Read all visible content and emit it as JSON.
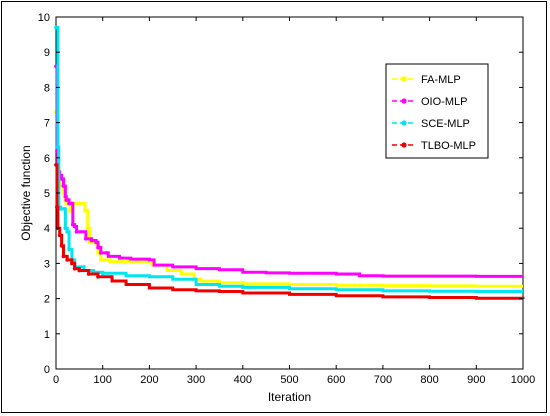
{
  "chart_data": {
    "type": "line",
    "title": "",
    "xlabel": "Iteration",
    "ylabel": "Objective function",
    "xlim": [
      0,
      1000
    ],
    "ylim": [
      0,
      10
    ],
    "xticks": [
      0,
      100,
      200,
      300,
      400,
      500,
      600,
      700,
      800,
      900,
      1000
    ],
    "yticks": [
      0,
      1,
      2,
      3,
      4,
      5,
      6,
      7,
      8,
      9,
      10
    ],
    "grid": false,
    "legend_position": "top-right",
    "series": [
      {
        "name": "FA-MLP",
        "color": "#ffff00",
        "marker": "square",
        "points": [
          [
            0,
            7.3
          ],
          [
            2,
            7.3
          ],
          [
            4,
            5.7
          ],
          [
            6,
            5.4
          ],
          [
            8,
            5.4
          ],
          [
            12,
            5.2
          ],
          [
            16,
            5.0
          ],
          [
            20,
            4.8
          ],
          [
            22,
            4.7
          ],
          [
            28,
            4.7
          ],
          [
            30,
            4.5
          ],
          [
            34,
            4.5
          ],
          [
            36,
            4.7
          ],
          [
            60,
            4.7
          ],
          [
            62,
            4.5
          ],
          [
            66,
            4.5
          ],
          [
            68,
            4.0
          ],
          [
            72,
            3.6
          ],
          [
            86,
            3.55
          ],
          [
            90,
            3.3
          ],
          [
            96,
            3.1
          ],
          [
            112,
            3.1
          ],
          [
            116,
            3.05
          ],
          [
            200,
            3.05
          ],
          [
            206,
            2.95
          ],
          [
            230,
            2.95
          ],
          [
            238,
            2.8
          ],
          [
            268,
            2.7
          ],
          [
            296,
            2.55
          ],
          [
            310,
            2.5
          ],
          [
            350,
            2.45
          ],
          [
            400,
            2.42
          ],
          [
            500,
            2.4
          ],
          [
            600,
            2.38
          ],
          [
            700,
            2.37
          ],
          [
            800,
            2.36
          ],
          [
            900,
            2.35
          ],
          [
            1000,
            2.35
          ]
        ]
      },
      {
        "name": "OIO-MLP",
        "color": "#ff00ff",
        "marker": "circle",
        "points": [
          [
            0,
            8.6
          ],
          [
            2,
            6.2
          ],
          [
            4,
            5.6
          ],
          [
            8,
            5.5
          ],
          [
            12,
            5.4
          ],
          [
            16,
            5.2
          ],
          [
            20,
            4.9
          ],
          [
            22,
            4.8
          ],
          [
            26,
            4.8
          ],
          [
            28,
            4.7
          ],
          [
            34,
            4.7
          ],
          [
            36,
            4.1
          ],
          [
            40,
            4.05
          ],
          [
            44,
            3.9
          ],
          [
            64,
            3.7
          ],
          [
            76,
            3.65
          ],
          [
            86,
            3.6
          ],
          [
            90,
            3.45
          ],
          [
            96,
            3.3
          ],
          [
            108,
            3.3
          ],
          [
            112,
            3.2
          ],
          [
            136,
            3.15
          ],
          [
            160,
            3.12
          ],
          [
            200,
            3.1
          ],
          [
            210,
            2.95
          ],
          [
            250,
            2.9
          ],
          [
            300,
            2.85
          ],
          [
            350,
            2.82
          ],
          [
            400,
            2.75
          ],
          [
            450,
            2.73
          ],
          [
            500,
            2.72
          ],
          [
            600,
            2.7
          ],
          [
            650,
            2.65
          ],
          [
            700,
            2.64
          ],
          [
            800,
            2.64
          ],
          [
            900,
            2.63
          ],
          [
            1000,
            2.63
          ]
        ]
      },
      {
        "name": "SCE-MLP",
        "color": "#00e5ee",
        "marker": "circle",
        "points": [
          [
            0,
            9.7
          ],
          [
            2,
            9.7
          ],
          [
            4,
            6.3
          ],
          [
            6,
            4.6
          ],
          [
            10,
            4.55
          ],
          [
            18,
            4.55
          ],
          [
            20,
            4.0
          ],
          [
            24,
            3.9
          ],
          [
            28,
            3.4
          ],
          [
            34,
            3.1
          ],
          [
            40,
            2.9
          ],
          [
            60,
            2.8
          ],
          [
            80,
            2.75
          ],
          [
            100,
            2.72
          ],
          [
            150,
            2.65
          ],
          [
            200,
            2.62
          ],
          [
            250,
            2.55
          ],
          [
            300,
            2.4
          ],
          [
            350,
            2.35
          ],
          [
            400,
            2.32
          ],
          [
            500,
            2.28
          ],
          [
            600,
            2.25
          ],
          [
            700,
            2.22
          ],
          [
            800,
            2.21
          ],
          [
            900,
            2.2
          ],
          [
            1000,
            2.2
          ]
        ]
      },
      {
        "name": "TLBO-MLP",
        "color": "#ee0000",
        "marker": "circle",
        "points": [
          [
            0,
            5.8
          ],
          [
            2,
            4.6
          ],
          [
            4,
            4.0
          ],
          [
            8,
            3.8
          ],
          [
            12,
            3.5
          ],
          [
            16,
            3.2
          ],
          [
            24,
            3.1
          ],
          [
            34,
            3.0
          ],
          [
            40,
            2.85
          ],
          [
            50,
            2.8
          ],
          [
            70,
            2.7
          ],
          [
            90,
            2.62
          ],
          [
            120,
            2.5
          ],
          [
            150,
            2.4
          ],
          [
            200,
            2.3
          ],
          [
            250,
            2.25
          ],
          [
            300,
            2.22
          ],
          [
            350,
            2.2
          ],
          [
            400,
            2.16
          ],
          [
            500,
            2.12
          ],
          [
            600,
            2.08
          ],
          [
            700,
            2.05
          ],
          [
            800,
            2.03
          ],
          [
            900,
            2.01
          ],
          [
            1000,
            1.99
          ]
        ]
      }
    ]
  }
}
